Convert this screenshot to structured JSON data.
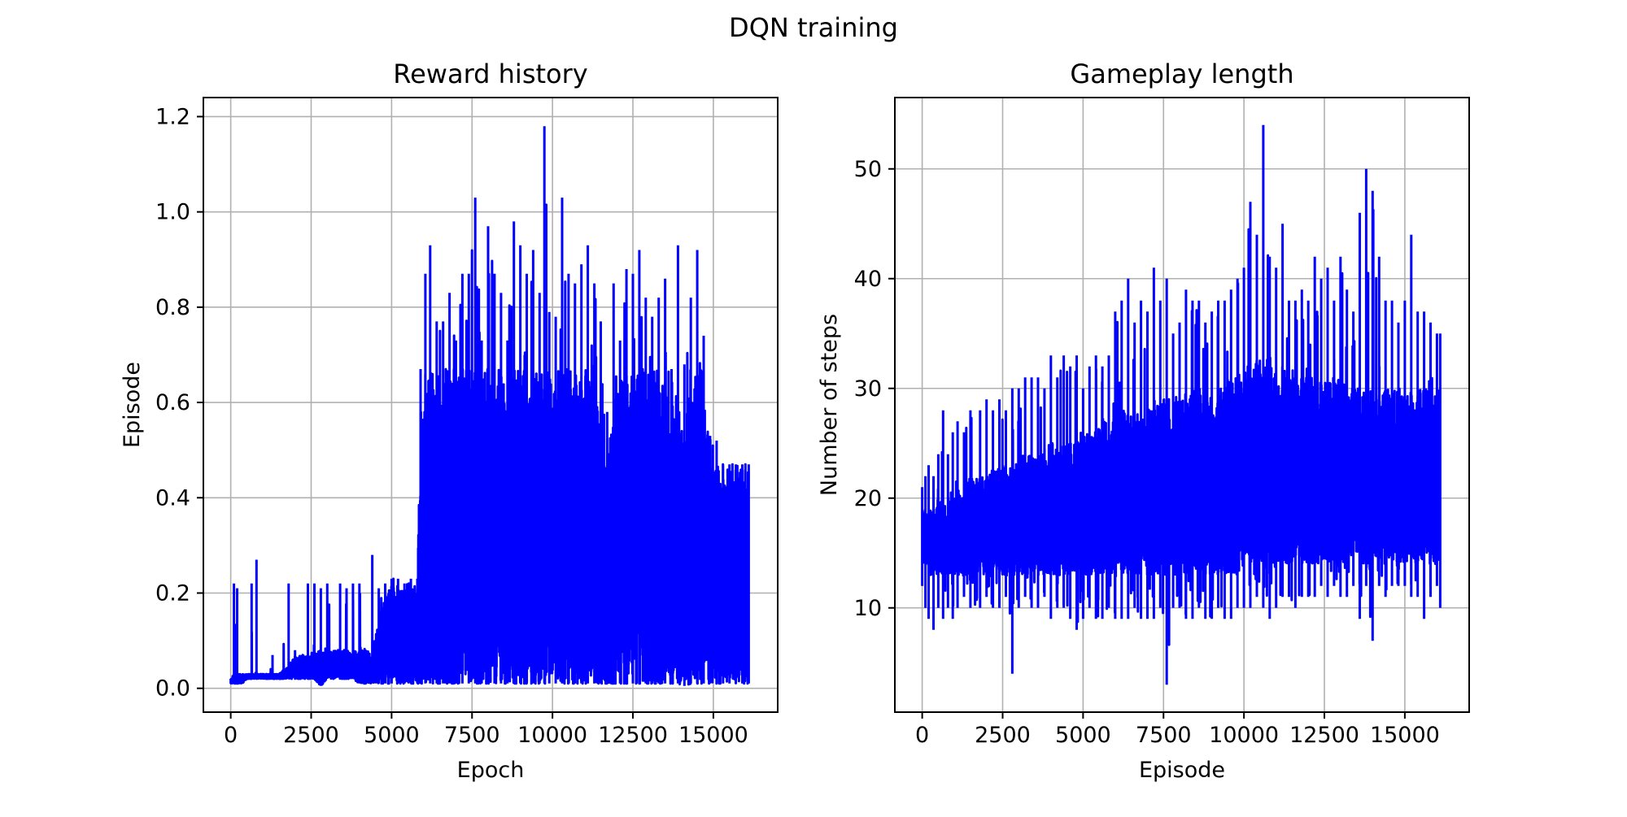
{
  "figure": {
    "suptitle": "DQN training",
    "line_color": "#0000ff",
    "grid": true
  },
  "chart_data": [
    {
      "type": "line",
      "title": "Reward history",
      "xlabel": "Epoch",
      "ylabel": "Episode",
      "xlim": [
        -850,
        17000
      ],
      "ylim": [
        -0.05,
        1.24
      ],
      "xticks": [
        0,
        2500,
        5000,
        7500,
        10000,
        12500,
        15000
      ],
      "xtick_labels": [
        "0",
        "2500",
        "5000",
        "7500",
        "10000",
        "12500",
        "15000"
      ],
      "yticks": [
        0.0,
        0.2,
        0.4,
        0.6,
        0.8,
        1.0,
        1.2
      ],
      "ytick_labels": [
        "0.0",
        "0.2",
        "0.4",
        "0.6",
        "0.8",
        "1.0",
        "1.2"
      ],
      "grid": true,
      "series": [
        {
          "color": "#0000ff",
          "x": [
            0,
            100,
            200,
            350,
            500,
            650,
            800,
            950,
            1100,
            1300,
            1500,
            1800,
            2000,
            2200,
            2400,
            2600,
            2800,
            3000,
            3200,
            3400,
            3600,
            3800,
            4000,
            4200,
            4400,
            4600,
            4800,
            5000,
            5200,
            5400,
            5600,
            5800,
            5900,
            6050,
            6200,
            6400,
            6600,
            6800,
            7000,
            7200,
            7400,
            7600,
            7800,
            8000,
            8200,
            8400,
            8600,
            8800,
            9000,
            9200,
            9400,
            9600,
            9750,
            9900,
            10100,
            10300,
            10500,
            10700,
            10900,
            11100,
            11300,
            11500,
            11700,
            11900,
            12100,
            12300,
            12500,
            12700,
            12900,
            13100,
            13300,
            13500,
            13700,
            13900,
            14100,
            14300,
            14500,
            14700,
            14900,
            15100,
            15300,
            15500,
            15700,
            15900,
            16100
          ],
          "high": [
            0.02,
            0.22,
            0.21,
            0.03,
            0.03,
            0.22,
            0.27,
            0.03,
            0.03,
            0.07,
            0.03,
            0.22,
            0.08,
            0.07,
            0.22,
            0.22,
            0.21,
            0.22,
            0.08,
            0.22,
            0.21,
            0.22,
            0.22,
            0.08,
            0.28,
            0.21,
            0.22,
            0.23,
            0.23,
            0.22,
            0.23,
            0.23,
            0.67,
            0.87,
            0.93,
            0.77,
            0.77,
            0.83,
            0.73,
            0.87,
            0.87,
            1.03,
            0.73,
            0.97,
            0.87,
            0.83,
            0.73,
            0.98,
            0.93,
            0.87,
            0.92,
            0.83,
            1.18,
            0.79,
            0.78,
            1.03,
            0.87,
            0.85,
            0.89,
            0.93,
            0.85,
            0.77,
            0.58,
            0.85,
            0.73,
            0.88,
            0.87,
            0.92,
            0.82,
            0.78,
            0.82,
            0.86,
            0.67,
            0.93,
            0.68,
            0.82,
            0.92,
            0.74,
            0.53,
            0.52,
            0.47,
            0.47,
            0.47,
            0.47,
            0.47
          ],
          "low": [
            0.01,
            0.01,
            0.01,
            0.01,
            0.02,
            0.02,
            0.02,
            0.02,
            0.02,
            0.02,
            0.02,
            0.02,
            0.02,
            0.02,
            0.02,
            0.02,
            0.005,
            0.02,
            0.02,
            0.02,
            0.02,
            0.02,
            0.01,
            0.01,
            0.01,
            0.01,
            0.01,
            0.01,
            0.01,
            0.01,
            0.01,
            0.01,
            0.01,
            0.01,
            0.01,
            0.01,
            0.01,
            0.01,
            0.01,
            0.01,
            0.01,
            0.01,
            0.01,
            0.01,
            0.01,
            0.01,
            0.01,
            0.01,
            0.01,
            0.01,
            0.01,
            0.01,
            0.01,
            0.01,
            0.01,
            0.01,
            0.01,
            0.01,
            0.01,
            0.01,
            0.01,
            0.01,
            0.01,
            0.01,
            0.01,
            0.01,
            0.01,
            0.01,
            0.01,
            0.01,
            0.01,
            0.01,
            0.01,
            0.01,
            0.005,
            0.01,
            0.01,
            0.01,
            0.01,
            0.01,
            0.01,
            0.01,
            0.01,
            0.01,
            0.01
          ],
          "dense_top": [
            0.02,
            0.03,
            0.03,
            0.03,
            0.03,
            0.03,
            0.03,
            0.03,
            0.03,
            0.03,
            0.03,
            0.05,
            0.07,
            0.07,
            0.07,
            0.08,
            0.08,
            0.08,
            0.08,
            0.08,
            0.08,
            0.08,
            0.08,
            0.08,
            0.08,
            0.15,
            0.2,
            0.22,
            0.22,
            0.22,
            0.22,
            0.22,
            0.58,
            0.67,
            0.67,
            0.67,
            0.67,
            0.67,
            0.67,
            0.67,
            0.67,
            0.67,
            0.67,
            0.67,
            0.67,
            0.67,
            0.67,
            0.67,
            0.67,
            0.67,
            0.67,
            0.67,
            0.67,
            0.67,
            0.67,
            0.67,
            0.67,
            0.67,
            0.67,
            0.67,
            0.67,
            0.52,
            0.48,
            0.67,
            0.67,
            0.67,
            0.67,
            0.67,
            0.67,
            0.67,
            0.67,
            0.67,
            0.52,
            0.67,
            0.52,
            0.67,
            0.67,
            0.67,
            0.48,
            0.47,
            0.47,
            0.47,
            0.47,
            0.47,
            0.47
          ]
        }
      ]
    },
    {
      "type": "line",
      "title": "Gameplay length",
      "xlabel": "Episode",
      "ylabel": "Number of steps",
      "xlim": [
        -850,
        17000
      ],
      "ylim": [
        0.5,
        56.5
      ],
      "xticks": [
        0,
        2500,
        5000,
        7500,
        10000,
        12500,
        15000
      ],
      "xtick_labels": [
        "0",
        "2500",
        "5000",
        "7500",
        "10000",
        "12500",
        "15000"
      ],
      "yticks": [
        10,
        20,
        30,
        40,
        50
      ],
      "ytick_labels": [
        "10",
        "20",
        "30",
        "40",
        "50"
      ],
      "grid": true,
      "series": [
        {
          "color": "#0000ff",
          "x": [
            0,
            100,
            200,
            350,
            500,
            650,
            800,
            950,
            1100,
            1300,
            1500,
            1800,
            2000,
            2200,
            2400,
            2600,
            2800,
            3000,
            3200,
            3400,
            3600,
            3800,
            4000,
            4200,
            4400,
            4600,
            4800,
            5000,
            5200,
            5400,
            5600,
            5800,
            6000,
            6200,
            6400,
            6600,
            6800,
            7000,
            7200,
            7400,
            7600,
            7800,
            8000,
            8200,
            8400,
            8600,
            8800,
            9000,
            9200,
            9400,
            9600,
            9800,
            10000,
            10200,
            10400,
            10600,
            10800,
            11000,
            11200,
            11400,
            11600,
            11800,
            12000,
            12200,
            12400,
            12600,
            12800,
            13000,
            13200,
            13400,
            13600,
            13800,
            14000,
            14200,
            14400,
            14600,
            14800,
            15000,
            15200,
            15400,
            15600,
            15800,
            16000,
            16100
          ],
          "high": [
            21,
            22,
            23,
            22,
            24,
            28,
            24,
            26,
            27,
            26,
            28,
            28,
            29,
            28,
            29,
            28,
            30,
            30,
            31,
            31,
            31,
            30,
            33,
            31,
            33,
            32,
            33,
            30,
            32,
            33,
            32,
            33,
            37,
            38,
            40,
            36,
            38,
            37,
            41,
            38,
            40,
            35,
            36,
            39,
            38,
            38,
            36,
            37,
            38,
            38,
            39,
            40,
            41,
            47,
            44,
            54,
            42,
            41,
            45,
            38,
            38,
            39,
            38,
            42,
            40,
            41,
            38,
            42,
            39,
            37,
            46,
            50,
            48,
            42,
            38,
            38,
            36,
            38,
            44,
            37,
            37,
            36,
            35,
            35
          ],
          "low": [
            12,
            10,
            9,
            8,
            10,
            9,
            10,
            9,
            10,
            11,
            10,
            10,
            11,
            10,
            10,
            11,
            4,
            10,
            11,
            10,
            10,
            11,
            9,
            10,
            10,
            9,
            8,
            9,
            10,
            9,
            9,
            10,
            9,
            9,
            9,
            10,
            9,
            9,
            9,
            10,
            3,
            10,
            10,
            9,
            9,
            10,
            9,
            9,
            10,
            9,
            9,
            10,
            10,
            10,
            11,
            10,
            9,
            10,
            11,
            11,
            10,
            11,
            11,
            11,
            12,
            11,
            12,
            11,
            11,
            12,
            9,
            12,
            7,
            12,
            11,
            12,
            12,
            12,
            11,
            11,
            9,
            11,
            12,
            10
          ],
          "dense_top": [
            19,
            19,
            19,
            19,
            20,
            20,
            20,
            21,
            21,
            21,
            22,
            22,
            22,
            23,
            23,
            23,
            23,
            24,
            24,
            24,
            24,
            25,
            25,
            25,
            25,
            25,
            26,
            26,
            26,
            26,
            27,
            27,
            27,
            28,
            28,
            28,
            28,
            28,
            29,
            29,
            29,
            29,
            29,
            29,
            30,
            30,
            30,
            30,
            30,
            31,
            31,
            31,
            32,
            32,
            33,
            33,
            33,
            32,
            32,
            31,
            31,
            31,
            31,
            31,
            31,
            31,
            31,
            31,
            30,
            30,
            30,
            30,
            30,
            30,
            30,
            30,
            30,
            30,
            30,
            30,
            30,
            30,
            30,
            30
          ],
          "dense_bottom": [
            14,
            14,
            13,
            13,
            13,
            13,
            13,
            13,
            13,
            13,
            13,
            13,
            13,
            13,
            13,
            13,
            13,
            13,
            13,
            13,
            13,
            13,
            13,
            13,
            13,
            13,
            13,
            13,
            13,
            13,
            13,
            13,
            13,
            13,
            13,
            13,
            13,
            13,
            13,
            13,
            13,
            13,
            13,
            13,
            13,
            13,
            13,
            13,
            13,
            13,
            13,
            13,
            14,
            14,
            14,
            14,
            14,
            14,
            14,
            14,
            14,
            14,
            14,
            14,
            14,
            14,
            14,
            14,
            14,
            14,
            14,
            14,
            14,
            14,
            14,
            14,
            14,
            14,
            14,
            14,
            14,
            14,
            14,
            14
          ]
        }
      ]
    }
  ]
}
